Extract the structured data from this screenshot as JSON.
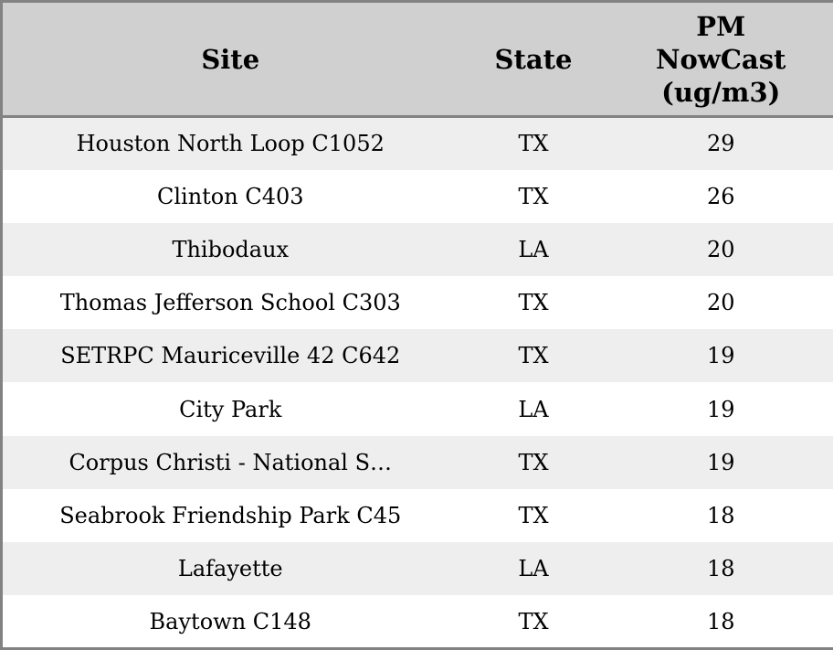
{
  "chart_data": {
    "type": "table",
    "title": "",
    "columns": [
      {
        "label": "Site"
      },
      {
        "label": "State"
      },
      {
        "label": "PM NowCast (ug/m3)"
      }
    ],
    "rows": [
      {
        "site": "Houston North Loop C1052",
        "state": "TX",
        "pm_nowcast": "29"
      },
      {
        "site": "Clinton C403",
        "state": "TX",
        "pm_nowcast": "26"
      },
      {
        "site": "Thibodaux",
        "state": "LA",
        "pm_nowcast": "20"
      },
      {
        "site": "Thomas Jefferson School C303",
        "state": "TX",
        "pm_nowcast": "20"
      },
      {
        "site": "SETRPC Mauriceville 42 C642",
        "state": "TX",
        "pm_nowcast": "19"
      },
      {
        "site": "City Park",
        "state": "LA",
        "pm_nowcast": "19"
      },
      {
        "site": "Corpus Christi - National S…",
        "state": "TX",
        "pm_nowcast": "19"
      },
      {
        "site": "Seabrook Friendship Park C45",
        "state": "TX",
        "pm_nowcast": "18"
      },
      {
        "site": "Lafayette",
        "state": "LA",
        "pm_nowcast": "18"
      },
      {
        "site": "Baytown C148",
        "state": "TX",
        "pm_nowcast": "18"
      }
    ]
  },
  "colors": {
    "border": "#828282",
    "header_bg": "#d0d0d0",
    "row_alt": "#eeeeee",
    "row": "#ffffff",
    "text": "#000000"
  }
}
